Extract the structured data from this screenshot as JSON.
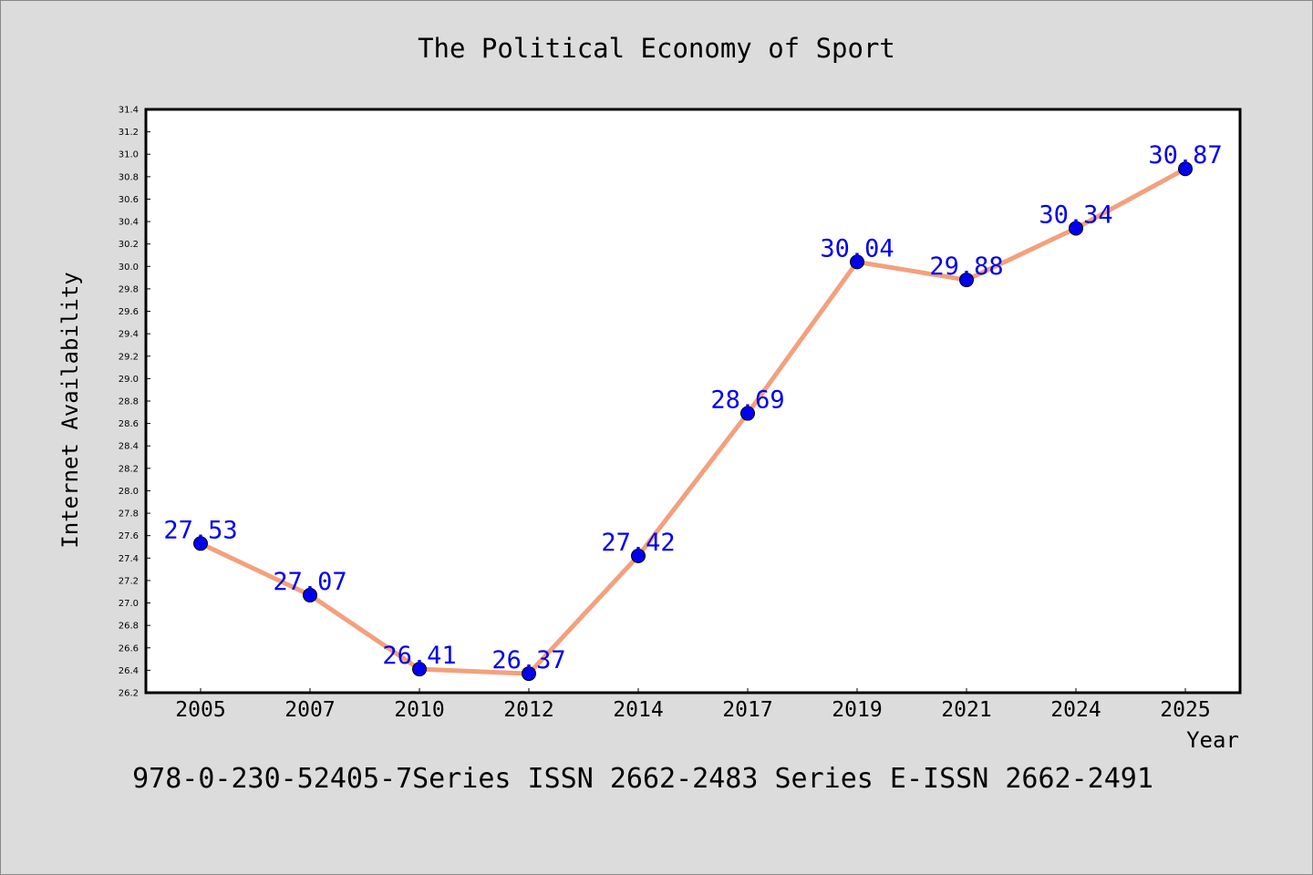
{
  "chart_data": {
    "type": "line",
    "title": "The Political Economy of Sport",
    "xlabel": "Year",
    "ylabel": "Internet Availability",
    "footer": "978-0-230-52405-7Series ISSN 2662-2483 Series E-ISSN 2662-2491",
    "categories": [
      "2005",
      "2007",
      "2010",
      "2012",
      "2014",
      "2017",
      "2019",
      "2021",
      "2024",
      "2025"
    ],
    "series": [
      {
        "values": [
          27.53,
          27.07,
          26.41,
          26.37,
          27.42,
          28.69,
          30.04,
          29.88,
          30.34,
          30.87
        ],
        "labels": [
          "27.53",
          "27.07",
          "26.41",
          "26.37",
          "27.42",
          "28.69",
          "30.04",
          "29.88",
          "30.34",
          "30.87"
        ]
      }
    ],
    "ylim": [
      26.2,
      31.4
    ],
    "yticks": [
      "26.2",
      "26.4",
      "26.6",
      "26.8",
      "27.0",
      "27.2",
      "27.4",
      "27.6",
      "27.8",
      "28.0",
      "28.2",
      "28.4",
      "28.6",
      "28.8",
      "29.0",
      "29.2",
      "29.4",
      "29.6",
      "29.8",
      "30.0",
      "30.2",
      "30.4",
      "30.6",
      "30.8",
      "31.0",
      "31.2",
      "31.4"
    ],
    "grid": false,
    "colors": {
      "background": "#dcdcdc",
      "plot_background": "#ffffff",
      "line": "#f4a07c",
      "marker": "#0000ee",
      "data_label": "#0000ee",
      "text": "#000000"
    }
  }
}
